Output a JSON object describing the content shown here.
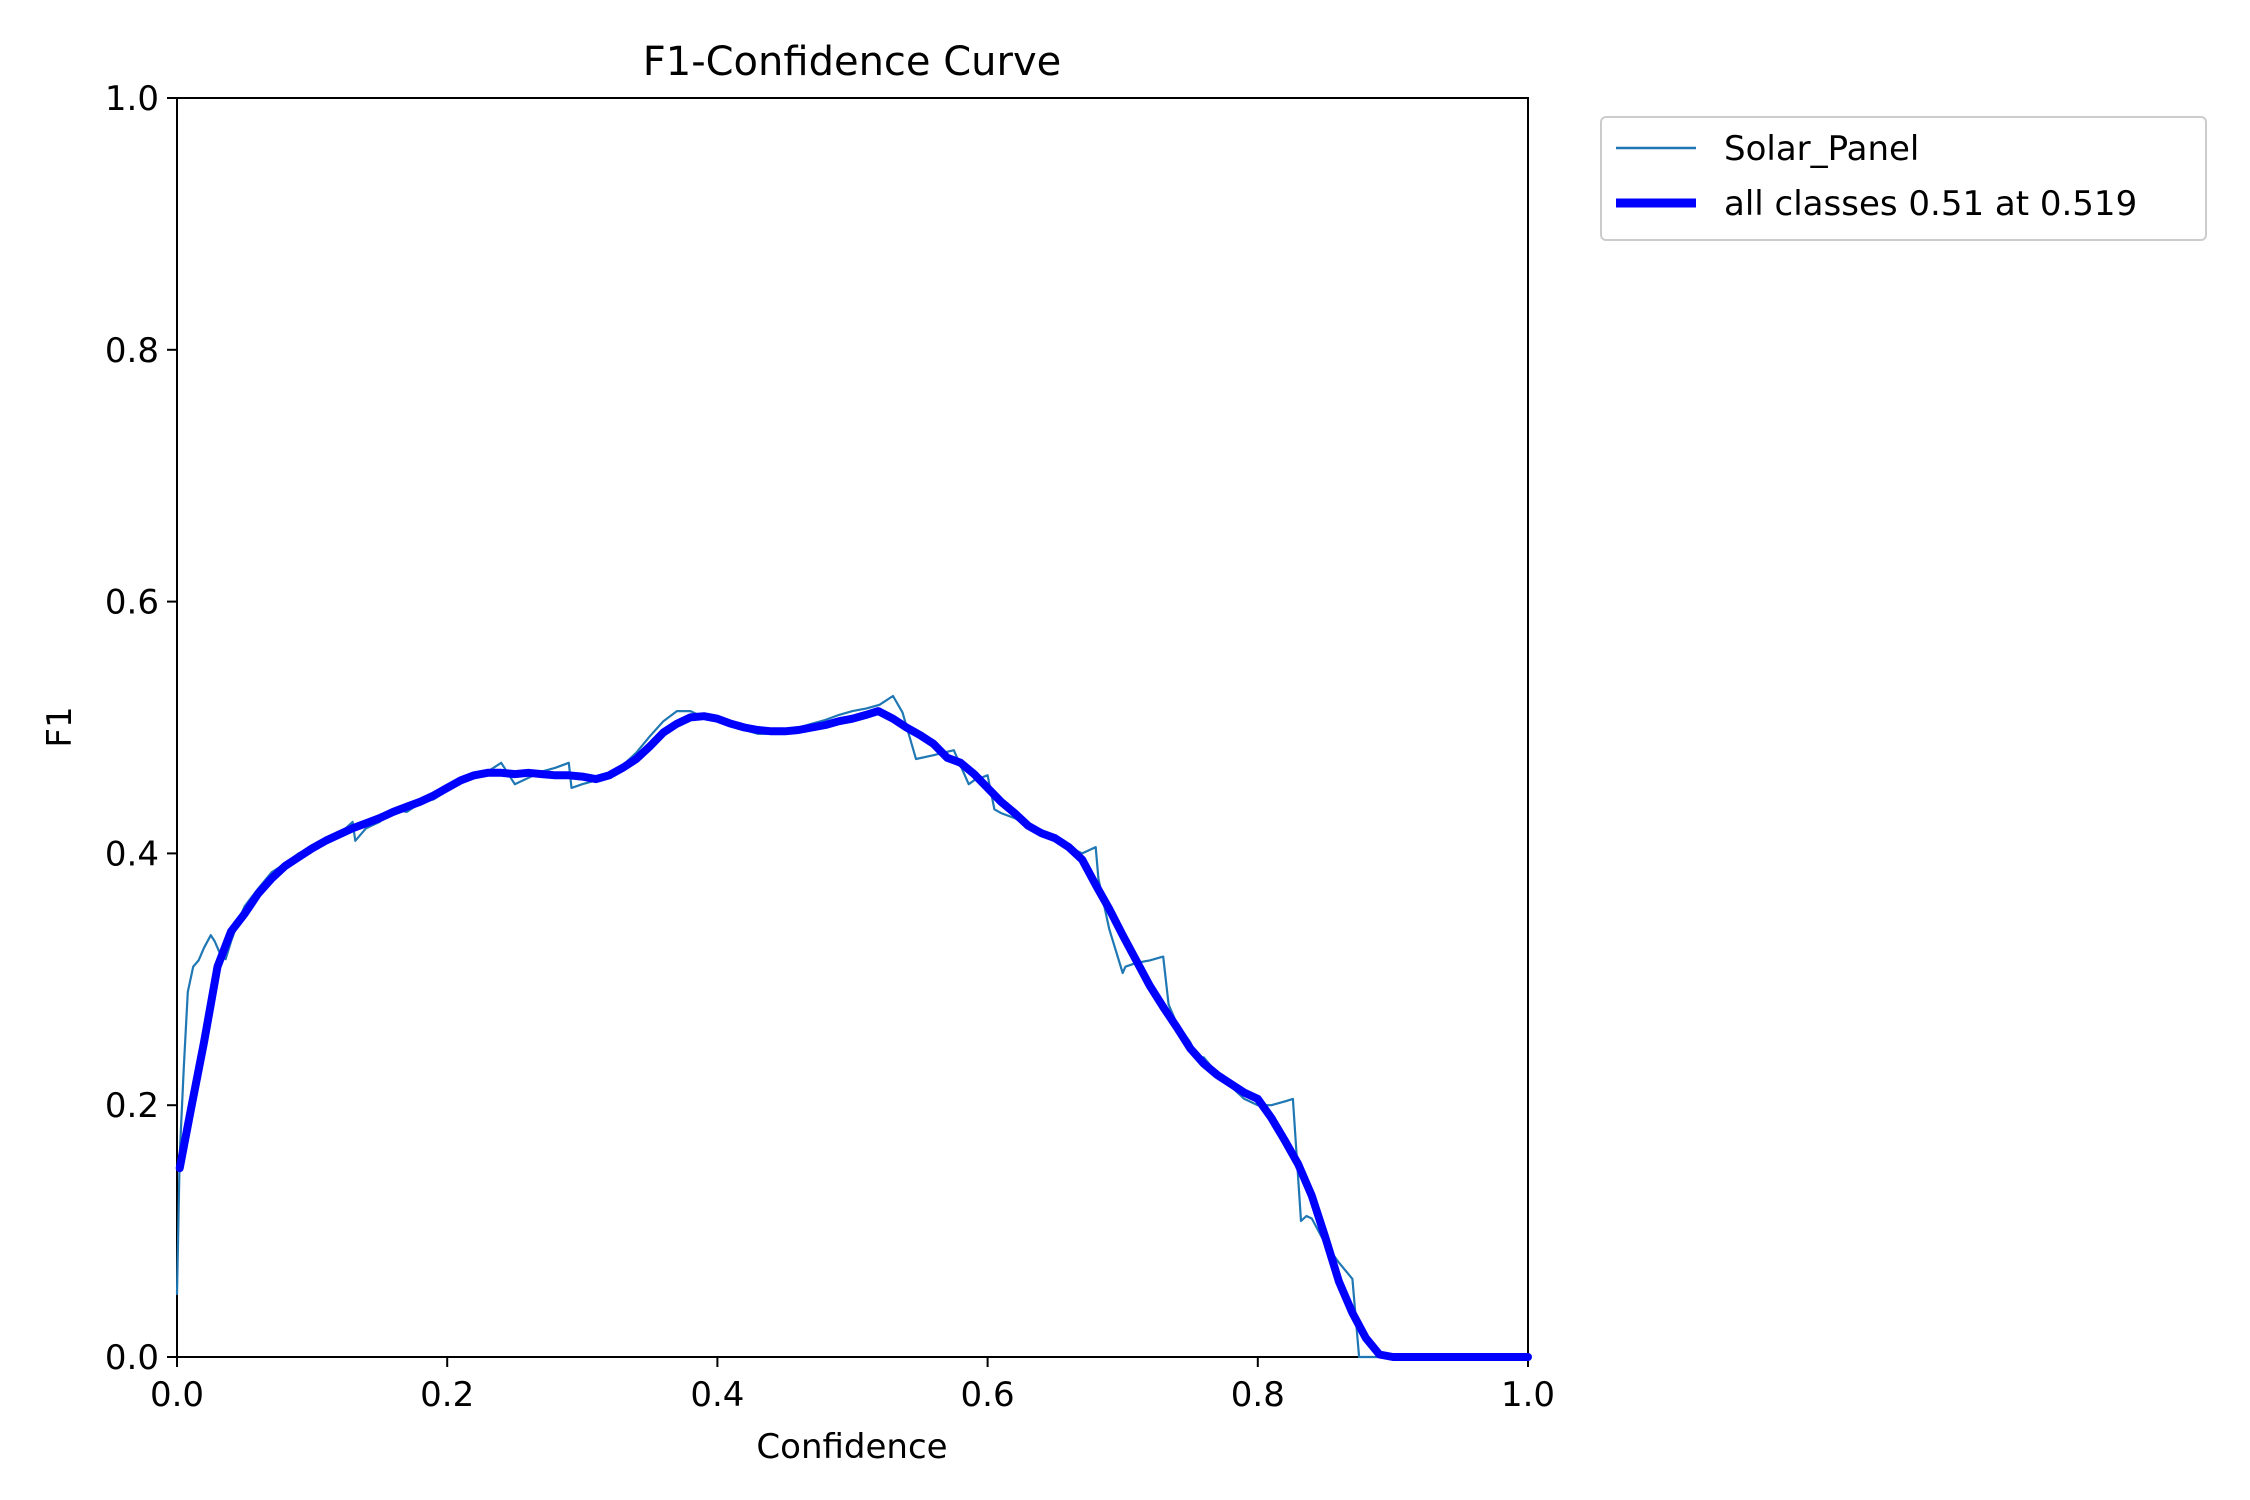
{
  "chart_data": {
    "type": "line",
    "title": "F1-Confidence Curve",
    "xlabel": "Confidence",
    "ylabel": "F1",
    "xlim": [
      0.0,
      1.0
    ],
    "ylim": [
      0.0,
      1.0
    ],
    "xticks": [
      "0.0",
      "0.2",
      "0.4",
      "0.6",
      "0.8",
      "1.0"
    ],
    "yticks": [
      "0.0",
      "0.2",
      "0.4",
      "0.6",
      "0.8",
      "1.0"
    ],
    "grid": false,
    "legend_position": "outside-top-right",
    "series": [
      {
        "name": "Solar_Panel",
        "color": "#1f77b4",
        "style": "thin",
        "x": [
          0.0,
          0.002,
          0.005,
          0.008,
          0.012,
          0.016,
          0.02,
          0.025,
          0.028,
          0.032,
          0.036,
          0.04,
          0.045,
          0.05,
          0.06,
          0.07,
          0.08,
          0.09,
          0.1,
          0.11,
          0.12,
          0.13,
          0.132,
          0.14,
          0.15,
          0.155,
          0.16,
          0.17,
          0.18,
          0.19,
          0.2,
          0.21,
          0.22,
          0.23,
          0.24,
          0.25,
          0.26,
          0.27,
          0.28,
          0.29,
          0.292,
          0.3,
          0.31,
          0.32,
          0.33,
          0.34,
          0.35,
          0.36,
          0.37,
          0.38,
          0.39,
          0.4,
          0.41,
          0.42,
          0.43,
          0.44,
          0.45,
          0.46,
          0.47,
          0.48,
          0.49,
          0.5,
          0.51,
          0.52,
          0.53,
          0.537,
          0.547,
          0.56,
          0.575,
          0.586,
          0.59,
          0.6,
          0.605,
          0.61,
          0.62,
          0.63,
          0.64,
          0.65,
          0.66,
          0.67,
          0.68,
          0.682,
          0.69,
          0.7,
          0.702,
          0.71,
          0.72,
          0.73,
          0.734,
          0.74,
          0.75,
          0.755,
          0.76,
          0.77,
          0.78,
          0.79,
          0.8,
          0.81,
          0.82,
          0.826,
          0.832,
          0.836,
          0.84,
          0.85,
          0.86,
          0.87,
          0.875,
          0.877,
          0.88,
          0.89,
          0.9,
          0.95,
          1.0
        ],
        "y": [
          0.05,
          0.16,
          0.23,
          0.29,
          0.31,
          0.315,
          0.325,
          0.335,
          0.33,
          0.32,
          0.316,
          0.33,
          0.345,
          0.358,
          0.372,
          0.385,
          0.392,
          0.4,
          0.405,
          0.41,
          0.415,
          0.425,
          0.41,
          0.42,
          0.425,
          0.43,
          0.435,
          0.433,
          0.44,
          0.443,
          0.45,
          0.458,
          0.462,
          0.465,
          0.472,
          0.455,
          0.46,
          0.465,
          0.468,
          0.472,
          0.452,
          0.455,
          0.458,
          0.462,
          0.47,
          0.48,
          0.493,
          0.505,
          0.513,
          0.513,
          0.508,
          0.505,
          0.502,
          0.498,
          0.495,
          0.495,
          0.498,
          0.5,
          0.503,
          0.506,
          0.51,
          0.513,
          0.515,
          0.518,
          0.525,
          0.512,
          0.475,
          0.478,
          0.482,
          0.455,
          0.458,
          0.462,
          0.435,
          0.432,
          0.428,
          0.422,
          0.418,
          0.412,
          0.405,
          0.4,
          0.405,
          0.38,
          0.34,
          0.305,
          0.31,
          0.313,
          0.315,
          0.318,
          0.28,
          0.265,
          0.25,
          0.238,
          0.238,
          0.225,
          0.215,
          0.205,
          0.2,
          0.2,
          0.203,
          0.205,
          0.108,
          0.112,
          0.11,
          0.09,
          0.075,
          0.062,
          0.0,
          0.0,
          0.0,
          0.0,
          0.0,
          0.0,
          0.0
        ]
      },
      {
        "name": "all classes 0.51 at 0.519",
        "color": "#0000ff",
        "style": "thick",
        "x": [
          0.002,
          0.01,
          0.02,
          0.03,
          0.04,
          0.05,
          0.06,
          0.07,
          0.08,
          0.09,
          0.1,
          0.11,
          0.12,
          0.13,
          0.14,
          0.15,
          0.16,
          0.17,
          0.18,
          0.19,
          0.2,
          0.21,
          0.22,
          0.23,
          0.24,
          0.25,
          0.26,
          0.27,
          0.28,
          0.29,
          0.3,
          0.31,
          0.32,
          0.33,
          0.34,
          0.35,
          0.36,
          0.37,
          0.38,
          0.39,
          0.4,
          0.41,
          0.42,
          0.43,
          0.44,
          0.45,
          0.46,
          0.47,
          0.48,
          0.49,
          0.5,
          0.51,
          0.519,
          0.53,
          0.54,
          0.55,
          0.56,
          0.57,
          0.58,
          0.59,
          0.6,
          0.61,
          0.62,
          0.63,
          0.64,
          0.65,
          0.66,
          0.67,
          0.68,
          0.69,
          0.7,
          0.71,
          0.72,
          0.73,
          0.74,
          0.75,
          0.76,
          0.77,
          0.78,
          0.79,
          0.8,
          0.81,
          0.82,
          0.83,
          0.84,
          0.85,
          0.86,
          0.87,
          0.88,
          0.89,
          0.9,
          0.95,
          1.0
        ],
        "y": [
          0.15,
          0.195,
          0.25,
          0.31,
          0.338,
          0.352,
          0.368,
          0.38,
          0.39,
          0.397,
          0.404,
          0.41,
          0.415,
          0.42,
          0.424,
          0.428,
          0.433,
          0.437,
          0.441,
          0.446,
          0.452,
          0.458,
          0.462,
          0.464,
          0.464,
          0.463,
          0.464,
          0.463,
          0.462,
          0.462,
          0.461,
          0.459,
          0.462,
          0.468,
          0.475,
          0.485,
          0.496,
          0.503,
          0.508,
          0.509,
          0.507,
          0.503,
          0.5,
          0.498,
          0.497,
          0.497,
          0.498,
          0.5,
          0.502,
          0.505,
          0.507,
          0.51,
          0.513,
          0.507,
          0.5,
          0.494,
          0.487,
          0.476,
          0.472,
          0.463,
          0.452,
          0.441,
          0.432,
          0.422,
          0.416,
          0.412,
          0.405,
          0.395,
          0.375,
          0.356,
          0.335,
          0.315,
          0.295,
          0.278,
          0.262,
          0.245,
          0.233,
          0.224,
          0.217,
          0.21,
          0.205,
          0.19,
          0.172,
          0.153,
          0.128,
          0.095,
          0.06,
          0.035,
          0.015,
          0.002,
          0.0,
          0.0,
          0.0
        ]
      }
    ]
  }
}
